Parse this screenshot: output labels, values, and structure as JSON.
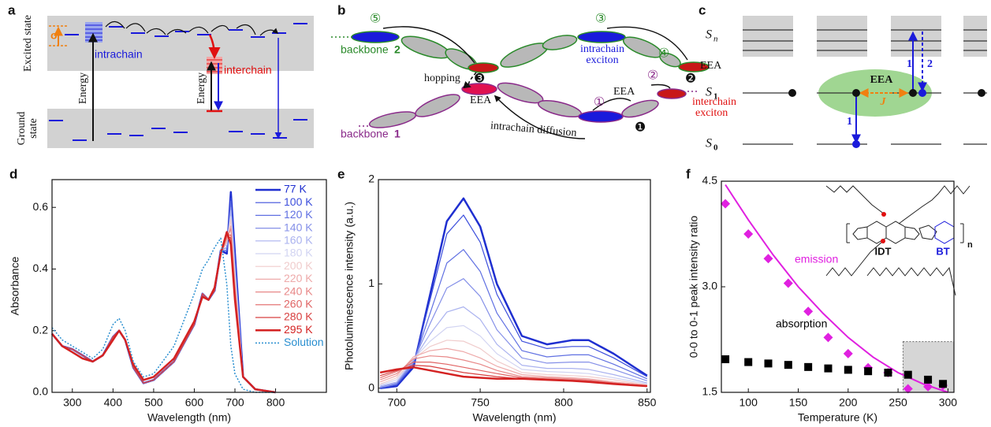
{
  "panels": {
    "a": {
      "label": "a",
      "excited_state": "Excited state",
      "ground_state": [
        "Ground",
        "state"
      ],
      "sigma": "σ",
      "intrachain": "intrachain",
      "interchain": "interchain",
      "energy": [
        "Energy",
        "Energy"
      ]
    },
    "b": {
      "label": "b",
      "backbone_top": "backbone",
      "backbone_top_num": "2",
      "backbone_bottom": "backbone",
      "backbone_bottom_num": "1",
      "hopping": "hopping",
      "eea": [
        "EEA",
        "EEA",
        "EEA"
      ],
      "intrachain_exciton": [
        "intrachain",
        "exciton"
      ],
      "interchain_exciton": [
        "interchain",
        "exciton"
      ],
      "intrachain_diffusion": "intrachain diffusion",
      "steps": [
        "①",
        "②",
        "③",
        "④",
        "⑤"
      ],
      "sites": [
        "❶",
        "❷",
        "❸"
      ]
    },
    "c": {
      "label": "c",
      "levels": [
        {
          "symbol": "S",
          "sub": "n"
        },
        {
          "symbol": "S",
          "sub": "1"
        },
        {
          "symbol": "S",
          "sub": "0"
        }
      ],
      "eea": "EEA",
      "j": "J",
      "steps": [
        "1",
        "2",
        "1"
      ]
    }
  },
  "chart_data": [
    {
      "type": "line",
      "panel_label": "d",
      "x_label": "Wavelength (nm)",
      "y_label": "Absorbance",
      "xlim": [
        250,
        925
      ],
      "ylim": [
        0,
        0.69
      ],
      "xticks": [
        300,
        400,
        500,
        600,
        700,
        800
      ],
      "yticks": [
        {
          "value": 0,
          "label": "0.0"
        },
        0.2,
        0.4,
        0.6
      ],
      "legend": "upper right",
      "x": [
        250,
        275,
        300,
        325,
        350,
        375,
        400,
        415,
        430,
        450,
        475,
        500,
        550,
        600,
        620,
        635,
        650,
        665,
        680,
        690,
        700,
        720,
        750,
        800
      ],
      "series": [
        {
          "name": "77 K",
          "color": "#1f2fd0",
          "linewidth": 2.5,
          "values": [
            0.19,
            0.15,
            0.14,
            0.12,
            0.1,
            0.12,
            0.18,
            0.2,
            0.17,
            0.08,
            0.03,
            0.04,
            0.1,
            0.22,
            0.32,
            0.3,
            0.33,
            0.46,
            0.45,
            0.65,
            0.45,
            0.05,
            0.01,
            0
          ]
        },
        {
          "name": "100 K",
          "color": "#3d4fdc",
          "linewidth": 1.2,
          "values": [
            0.19,
            0.15,
            0.14,
            0.12,
            0.1,
            0.12,
            0.18,
            0.2,
            0.17,
            0.08,
            0.03,
            0.04,
            0.1,
            0.22,
            0.32,
            0.3,
            0.33,
            0.46,
            0.46,
            0.63,
            0.44,
            0.05,
            0.01,
            0
          ]
        },
        {
          "name": "120 K",
          "color": "#6070e2",
          "linewidth": 1.2,
          "values": [
            0.19,
            0.15,
            0.14,
            0.12,
            0.1,
            0.12,
            0.18,
            0.2,
            0.17,
            0.08,
            0.03,
            0.04,
            0.1,
            0.22,
            0.32,
            0.3,
            0.33,
            0.46,
            0.46,
            0.62,
            0.42,
            0.05,
            0.01,
            0
          ]
        },
        {
          "name": "140 K",
          "color": "#8590e8",
          "linewidth": 1.2,
          "values": [
            0.19,
            0.15,
            0.14,
            0.12,
            0.1,
            0.12,
            0.18,
            0.2,
            0.17,
            0.08,
            0.03,
            0.04,
            0.1,
            0.22,
            0.32,
            0.3,
            0.33,
            0.46,
            0.47,
            0.6,
            0.41,
            0.05,
            0.01,
            0
          ]
        },
        {
          "name": "160 K",
          "color": "#aab2ef",
          "linewidth": 1.2,
          "values": [
            0.19,
            0.15,
            0.14,
            0.12,
            0.1,
            0.12,
            0.18,
            0.2,
            0.17,
            0.08,
            0.03,
            0.04,
            0.1,
            0.22,
            0.32,
            0.3,
            0.33,
            0.46,
            0.48,
            0.59,
            0.4,
            0.05,
            0.01,
            0
          ]
        },
        {
          "name": "180 K",
          "color": "#d2d4f2",
          "linewidth": 1.2,
          "values": [
            0.19,
            0.15,
            0.14,
            0.12,
            0.1,
            0.12,
            0.18,
            0.2,
            0.17,
            0.08,
            0.03,
            0.04,
            0.1,
            0.22,
            0.32,
            0.3,
            0.33,
            0.46,
            0.48,
            0.57,
            0.38,
            0.05,
            0.01,
            0
          ]
        },
        {
          "name": "200 K",
          "color": "#f0cccc",
          "linewidth": 1.2,
          "values": [
            0.19,
            0.15,
            0.14,
            0.12,
            0.1,
            0.12,
            0.18,
            0.2,
            0.17,
            0.08,
            0.03,
            0.04,
            0.1,
            0.22,
            0.32,
            0.3,
            0.33,
            0.45,
            0.49,
            0.56,
            0.37,
            0.05,
            0.01,
            0
          ]
        },
        {
          "name": "220 K",
          "color": "#eeaaaa",
          "linewidth": 1.2,
          "values": [
            0.19,
            0.15,
            0.14,
            0.12,
            0.1,
            0.12,
            0.18,
            0.2,
            0.17,
            0.08,
            0.03,
            0.04,
            0.1,
            0.22,
            0.32,
            0.3,
            0.33,
            0.45,
            0.49,
            0.54,
            0.35,
            0.05,
            0.01,
            0
          ]
        },
        {
          "name": "240 K",
          "color": "#e88888",
          "linewidth": 1.2,
          "values": [
            0.19,
            0.15,
            0.14,
            0.12,
            0.1,
            0.12,
            0.18,
            0.2,
            0.17,
            0.08,
            0.03,
            0.04,
            0.1,
            0.22,
            0.32,
            0.3,
            0.33,
            0.45,
            0.5,
            0.53,
            0.34,
            0.05,
            0.01,
            0
          ]
        },
        {
          "name": "260 K",
          "color": "#e06464",
          "linewidth": 1.2,
          "values": [
            0.19,
            0.15,
            0.14,
            0.12,
            0.1,
            0.12,
            0.18,
            0.2,
            0.17,
            0.08,
            0.03,
            0.04,
            0.1,
            0.22,
            0.32,
            0.3,
            0.33,
            0.45,
            0.51,
            0.51,
            0.33,
            0.05,
            0.01,
            0
          ]
        },
        {
          "name": "280 K",
          "color": "#d84040",
          "linewidth": 1.2,
          "values": [
            0.19,
            0.15,
            0.14,
            0.12,
            0.1,
            0.12,
            0.18,
            0.2,
            0.17,
            0.08,
            0.03,
            0.04,
            0.1,
            0.22,
            0.32,
            0.3,
            0.33,
            0.45,
            0.51,
            0.5,
            0.31,
            0.05,
            0.01,
            0
          ]
        },
        {
          "name": "295 K",
          "color": "#d42222",
          "linewidth": 2.5,
          "values": [
            0.19,
            0.15,
            0.13,
            0.11,
            0.1,
            0.12,
            0.17,
            0.2,
            0.17,
            0.09,
            0.04,
            0.05,
            0.11,
            0.23,
            0.31,
            0.3,
            0.34,
            0.45,
            0.52,
            0.48,
            0.3,
            0.05,
            0.01,
            0
          ]
        },
        {
          "name": "Solution",
          "color": "#2a8fd0",
          "linewidth": 1.5,
          "style": "dotted",
          "values": [
            0.21,
            0.17,
            0.15,
            0.13,
            0.11,
            0.14,
            0.22,
            0.24,
            0.2,
            0.1,
            0.05,
            0.06,
            0.15,
            0.32,
            0.4,
            0.43,
            0.47,
            0.5,
            0.35,
            0.15,
            0.06,
            0.01,
            0,
            0
          ]
        }
      ]
    },
    {
      "type": "line",
      "panel_label": "e",
      "x_label": "Wavelength (nm)",
      "y_label": "Photoluminescence intensity (a.u.)",
      "xlim": [
        689,
        852
      ],
      "ylim": [
        -0.04,
        2
      ],
      "xticks": [
        700,
        750,
        800,
        850
      ],
      "yticks": [
        0,
        1,
        2
      ],
      "x": [
        690,
        700,
        710,
        720,
        730,
        740,
        750,
        760,
        775,
        790,
        805,
        815,
        830,
        850
      ],
      "series": [
        {
          "color": "#1f2fd0",
          "linewidth": 2.5,
          "values": [
            0,
            0.02,
            0.2,
            0.9,
            1.6,
            1.82,
            1.55,
            1.0,
            0.5,
            0.42,
            0.46,
            0.46,
            0.33,
            0.12
          ]
        },
        {
          "color": "#3d4fdc",
          "linewidth": 1.2,
          "values": [
            0,
            0.03,
            0.22,
            0.85,
            1.48,
            1.66,
            1.4,
            0.9,
            0.45,
            0.38,
            0.4,
            0.4,
            0.29,
            0.11
          ]
        },
        {
          "color": "#6070e2",
          "linewidth": 1.2,
          "values": [
            0,
            0.04,
            0.24,
            0.72,
            1.2,
            1.33,
            1.12,
            0.72,
            0.36,
            0.3,
            0.32,
            0.32,
            0.23,
            0.09
          ]
        },
        {
          "color": "#8590e8",
          "linewidth": 1.2,
          "values": [
            0.01,
            0.05,
            0.26,
            0.62,
            0.96,
            1.05,
            0.88,
            0.56,
            0.29,
            0.24,
            0.25,
            0.25,
            0.18,
            0.07
          ]
        },
        {
          "color": "#aab2ef",
          "linewidth": 1.2,
          "values": [
            0.02,
            0.06,
            0.27,
            0.52,
            0.73,
            0.78,
            0.66,
            0.42,
            0.22,
            0.19,
            0.19,
            0.18,
            0.13,
            0.05
          ]
        },
        {
          "color": "#d2d4f2",
          "linewidth": 1.2,
          "values": [
            0.03,
            0.08,
            0.28,
            0.45,
            0.58,
            0.6,
            0.5,
            0.33,
            0.18,
            0.16,
            0.15,
            0.14,
            0.1,
            0.04
          ]
        },
        {
          "color": "#f0cccc",
          "linewidth": 1.2,
          "values": [
            0.04,
            0.1,
            0.28,
            0.4,
            0.46,
            0.45,
            0.38,
            0.26,
            0.15,
            0.13,
            0.12,
            0.11,
            0.08,
            0.03
          ]
        },
        {
          "color": "#eeaaaa",
          "linewidth": 1.2,
          "values": [
            0.06,
            0.12,
            0.3,
            0.36,
            0.38,
            0.35,
            0.29,
            0.21,
            0.13,
            0.11,
            0.1,
            0.09,
            0.06,
            0.03
          ]
        },
        {
          "color": "#e88888",
          "linewidth": 1.2,
          "values": [
            0.08,
            0.14,
            0.28,
            0.31,
            0.3,
            0.27,
            0.23,
            0.17,
            0.11,
            0.1,
            0.09,
            0.08,
            0.05,
            0.02
          ]
        },
        {
          "color": "#e06464",
          "linewidth": 1.2,
          "values": [
            0.1,
            0.16,
            0.25,
            0.25,
            0.23,
            0.2,
            0.17,
            0.14,
            0.1,
            0.09,
            0.08,
            0.07,
            0.05,
            0.02
          ]
        },
        {
          "color": "#d84040",
          "linewidth": 1.2,
          "values": [
            0.12,
            0.17,
            0.22,
            0.21,
            0.18,
            0.15,
            0.13,
            0.11,
            0.09,
            0.08,
            0.07,
            0.06,
            0.04,
            0.02
          ]
        },
        {
          "color": "#d42222",
          "linewidth": 2.5,
          "values": [
            0.15,
            0.18,
            0.2,
            0.17,
            0.14,
            0.11,
            0.1,
            0.09,
            0.09,
            0.08,
            0.07,
            0.06,
            0.04,
            0.02
          ]
        }
      ]
    },
    {
      "type": "scatter",
      "panel_label": "f",
      "x_label": "Temperature (K)",
      "y_label": "0-0 to 0-1 peak intensity ratio",
      "xlim": [
        73,
        306
      ],
      "ylim": [
        1.5,
        4.5
      ],
      "xticks": [
        100,
        150,
        200,
        250,
        300
      ],
      "yticks": [
        1.5,
        {
          "value": 3,
          "label": "3.0"
        },
        4.5
      ],
      "x": [
        77,
        100,
        120,
        140,
        160,
        180,
        200,
        220,
        240,
        260,
        280,
        295
      ],
      "series": [
        {
          "name": "emission",
          "color": "#e020e0",
          "marker": "diamond",
          "values": [
            4.18,
            3.75,
            3.4,
            3.05,
            2.65,
            2.28,
            2.05,
            1.85,
            1.78,
            1.55,
            1.58,
            1.6
          ]
        },
        {
          "name": "absorption",
          "color": "#000000",
          "marker": "square",
          "values": [
            1.97,
            1.93,
            1.91,
            1.89,
            1.86,
            1.84,
            1.82,
            1.8,
            1.78,
            1.75,
            1.68,
            1.62
          ]
        }
      ],
      "fit": {
        "color": "#e020e0",
        "x": [
          77,
          100,
          125,
          150,
          175,
          200,
          225,
          250,
          275,
          300
        ],
        "values": [
          4.45,
          3.95,
          3.45,
          3.0,
          2.62,
          2.28,
          2.0,
          1.78,
          1.62,
          1.5
        ]
      },
      "highlight": {
        "xlim": [
          255,
          306
        ],
        "ylim": [
          1.5,
          2.22
        ]
      },
      "inset": {
        "donor": "IDT",
        "acceptor": "BT",
        "repeat": "n"
      }
    }
  ]
}
